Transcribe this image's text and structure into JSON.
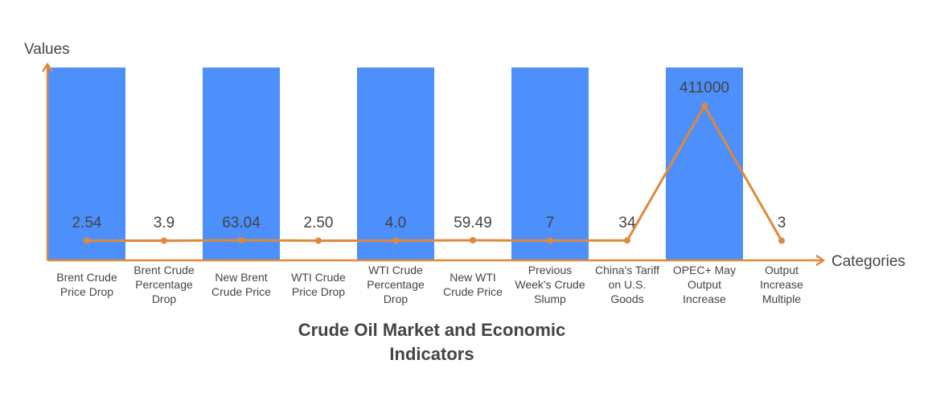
{
  "chart_data": {
    "type": "bar",
    "title": "Crude Oil Market and Economic Indicators",
    "xlabel": "Categories",
    "ylabel": "Values",
    "categories": [
      "Brent Crude Price Drop",
      "Brent Crude Percentage Drop",
      "New Brent Crude Price",
      "WTI Crude Price Drop",
      "WTI Crude Percentage Drop",
      "New WTI Crude Price",
      "Previous Week's Crude Slump",
      "China's Tariff on U.S. Goods",
      "OPEC+ May Output Increase",
      "Output Increase Multiple"
    ],
    "category_lines": [
      [
        "Brent Crude",
        "Price Drop"
      ],
      [
        "Brent Crude",
        "Percentage",
        "Drop"
      ],
      [
        "New Brent",
        "Crude Price"
      ],
      [
        "WTI Crude",
        "Price Drop"
      ],
      [
        "WTI Crude",
        "Percentage",
        "Drop"
      ],
      [
        "New WTI",
        "Crude Price"
      ],
      [
        "Previous",
        "Week's Crude",
        "Slump"
      ],
      [
        "China's Tariff",
        "on U.S.",
        "Goods"
      ],
      [
        "OPEC+ May",
        "Output",
        "Increase"
      ],
      [
        "Output",
        "Increase",
        "Multiple"
      ]
    ],
    "values": [
      2.54,
      3.9,
      63.04,
      2.5,
      4.0,
      59.49,
      7,
      34,
      411000,
      3
    ],
    "value_labels": [
      "2.54",
      "3.9",
      "63.04",
      "2.50",
      "4.0",
      "59.49",
      "7",
      "34",
      "411000",
      "3"
    ],
    "bar_categories": [
      0,
      2,
      4,
      6,
      8
    ],
    "colors": {
      "bar": "#4d8ffb",
      "line": "#e0893a",
      "axis": "#e0893a",
      "text": "#444444"
    },
    "grid": false
  }
}
